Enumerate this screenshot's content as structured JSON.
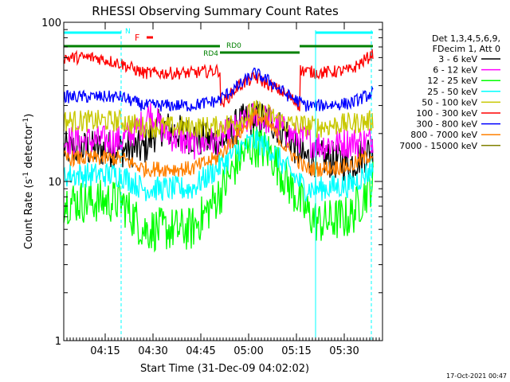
{
  "chart_data": {
    "type": "line",
    "title": "RHESSI Observing Summary Count Rates",
    "xlabel": "Start Time (31-Dec-09 04:02:02)",
    "ylabel_parts": [
      "Count Rate (s",
      "-1",
      " detector",
      "-1",
      ")"
    ],
    "footer": "17-Oct-2021 00:47",
    "x_range_minutes": [
      0,
      100
    ],
    "x_ticks": [
      {
        "min": 13,
        "label": "04:15"
      },
      {
        "min": 28,
        "label": "04:30"
      },
      {
        "min": 43,
        "label": "04:45"
      },
      {
        "min": 58,
        "label": "05:00"
      },
      {
        "min": 73,
        "label": "05:15"
      },
      {
        "min": 88,
        "label": "05:30"
      }
    ],
    "y_scale": "log",
    "y_range": [
      1,
      100
    ],
    "y_tick_labels": [
      {
        "value": 1,
        "label": "1"
      },
      {
        "value": 10,
        "label": "10"
      },
      {
        "value": 100,
        "label": "100"
      }
    ],
    "legend_header": [
      "Det 1,3,4,5,6,9,",
      "FDecim 1, Att 0"
    ],
    "series": [
      {
        "name": "3 - 6 keV",
        "color": "#000000",
        "x": [
          0,
          25,
          30,
          45,
          50,
          55,
          60,
          65,
          70,
          75,
          80,
          90,
          97
        ],
        "values": [
          16,
          16,
          22,
          18,
          18,
          23,
          25,
          24,
          20,
          14,
          14,
          13,
          16
        ]
      },
      {
        "name": "6 - 12 keV",
        "color": "#ff00ff",
        "x": [
          0,
          18,
          25,
          27,
          32,
          40,
          48,
          55,
          60,
          65,
          70,
          80,
          97
        ],
        "values": [
          18,
          18,
          23,
          27,
          20,
          17,
          18,
          22,
          26,
          24,
          20,
          17,
          18
        ]
      },
      {
        "name": "12 - 25 keV",
        "color": "#00ff00",
        "x": [
          0,
          18,
          25,
          40,
          45,
          50,
          55,
          60,
          65,
          70,
          76,
          80,
          90,
          97
        ],
        "values": [
          7.5,
          7.5,
          5,
          5,
          6.5,
          9,
          14,
          17,
          15,
          10,
          6.5,
          5.5,
          6,
          10
        ]
      },
      {
        "name": "25 - 50 keV",
        "color": "#00ffff",
        "x": [
          0,
          18,
          25,
          40,
          48,
          55,
          60,
          65,
          70,
          76,
          80,
          90,
          97
        ],
        "values": [
          11,
          11,
          9,
          9,
          12,
          16,
          18,
          16,
          12,
          9,
          9,
          9.5,
          12
        ]
      },
      {
        "name": "50 - 100 keV",
        "color": "#c8c800",
        "x": [
          0,
          18,
          25,
          40,
          48,
          55,
          60,
          65,
          70,
          80,
          97
        ],
        "values": [
          24,
          24,
          22,
          22,
          22,
          24,
          28,
          26,
          23,
          22,
          24
        ]
      },
      {
        "name": "100 - 300 keV",
        "color": "#ff0000",
        "x": [
          0,
          10,
          18,
          25,
          40,
          49,
          49.1,
          55,
          60,
          65,
          70,
          74,
          74.1,
          80,
          90,
          97
        ],
        "values": [
          60,
          60,
          55,
          48,
          48,
          50,
          30,
          40,
          45,
          40,
          35,
          30,
          50,
          48,
          50,
          63
        ]
      },
      {
        "name": "300 - 800 keV",
        "color": "#0000ff",
        "x": [
          0,
          18,
          25,
          40,
          48,
          55,
          60,
          65,
          70,
          76,
          80,
          90,
          97
        ],
        "values": [
          34,
          34,
          30,
          30,
          32,
          40,
          48,
          42,
          35,
          30,
          30,
          31,
          36
        ]
      },
      {
        "name": "800 - 7000 keV",
        "color": "#ff8000",
        "x": [
          0,
          18,
          25,
          40,
          48,
          55,
          60,
          65,
          70,
          76,
          80,
          90,
          97
        ],
        "values": [
          14,
          14,
          12,
          12,
          14,
          20,
          26,
          22,
          16,
          12,
          12,
          12.5,
          15
        ]
      },
      {
        "name": "7000 - 15000 keV",
        "color": "#808000",
        "x": [],
        "values": []
      }
    ],
    "annotations": {
      "night_bar": {
        "color": "#00ffff",
        "x_segments": [
          [
            0,
            18
          ],
          [
            79,
            97
          ]
        ],
        "label": "N"
      },
      "flare_marker": {
        "color": "#ff0000",
        "label": "F",
        "x_segment": [
          26,
          28
        ]
      },
      "saa_level": {
        "color": "#008000",
        "x_segments": [
          [
            0,
            49
          ],
          [
            49,
            74
          ],
          [
            74,
            97
          ]
        ],
        "labels": [
          "RD4",
          "RD0"
        ]
      },
      "vertical_lines": [
        {
          "x": 18,
          "style": "dashed",
          "color": "#00ffff"
        },
        {
          "x": 79,
          "style": "solid",
          "color": "#00ffff"
        },
        {
          "x": 96.5,
          "style": "dashed",
          "color": "#00ffff"
        }
      ]
    }
  }
}
